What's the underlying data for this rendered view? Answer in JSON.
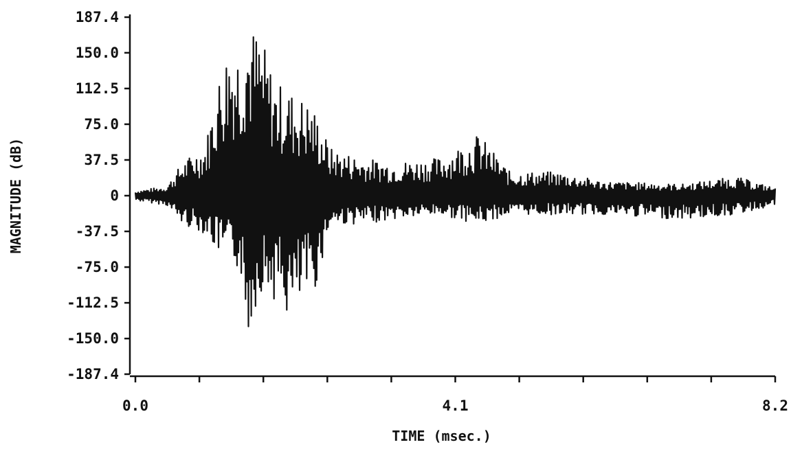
{
  "colors": {
    "ink": "#111111",
    "background": "#ffffff"
  },
  "chart_data": {
    "type": "line",
    "title": "",
    "xlabel": "TIME (msec.)",
    "ylabel": "MAGNITUDE (dB)",
    "xlim": [
      0.0,
      8.2
    ],
    "ylim": [
      -187.4,
      187.4
    ],
    "x_tick_labels": [
      "0.0",
      "4.1",
      "8.2"
    ],
    "x_tick_values": [
      0.0,
      4.1,
      8.2
    ],
    "x_minor_tick_count": 10,
    "y_tick_labels": [
      "187.4",
      "150.0",
      "112.5",
      "75.0",
      "37.5",
      "0",
      "-37.5",
      "-75.0",
      "-112.5",
      "-150.0",
      "-187.4"
    ],
    "y_tick_values": [
      187.4,
      150.0,
      112.5,
      75.0,
      37.5,
      0,
      -37.5,
      -75.0,
      -112.5,
      -150.0,
      -187.4
    ],
    "grid": false,
    "zero_line": true,
    "series": [
      {
        "name": "",
        "envelope": [
          {
            "x": 0.0,
            "max": 5,
            "min": -5
          },
          {
            "x": 0.4,
            "max": 10,
            "min": -10
          },
          {
            "x": 0.6,
            "max": 35,
            "min": -30
          },
          {
            "x": 0.9,
            "max": 55,
            "min": -40
          },
          {
            "x": 1.05,
            "max": 120,
            "min": -60
          },
          {
            "x": 1.2,
            "max": 165,
            "min": -70
          },
          {
            "x": 1.35,
            "max": 160,
            "min": -80
          },
          {
            "x": 1.42,
            "max": 185,
            "min": -155
          },
          {
            "x": 1.6,
            "max": 170,
            "min": -100
          },
          {
            "x": 1.8,
            "max": 120,
            "min": -110
          },
          {
            "x": 2.0,
            "max": 110,
            "min": -135
          },
          {
            "x": 2.2,
            "max": 100,
            "min": -105
          },
          {
            "x": 2.3,
            "max": 90,
            "min": -100
          },
          {
            "x": 2.5,
            "max": 50,
            "min": -30
          },
          {
            "x": 2.9,
            "max": 40,
            "min": -30
          },
          {
            "x": 3.3,
            "max": 35,
            "min": -25
          },
          {
            "x": 3.9,
            "max": 40,
            "min": -20
          },
          {
            "x": 4.4,
            "max": 65,
            "min": -30
          },
          {
            "x": 4.8,
            "max": 25,
            "min": -20
          },
          {
            "x": 5.4,
            "max": 25,
            "min": -20
          },
          {
            "x": 6.0,
            "max": 15,
            "min": -20
          },
          {
            "x": 7.0,
            "max": 12,
            "min": -25
          },
          {
            "x": 7.7,
            "max": 20,
            "min": -20
          },
          {
            "x": 8.2,
            "max": 8,
            "min": -10
          }
        ]
      }
    ]
  }
}
